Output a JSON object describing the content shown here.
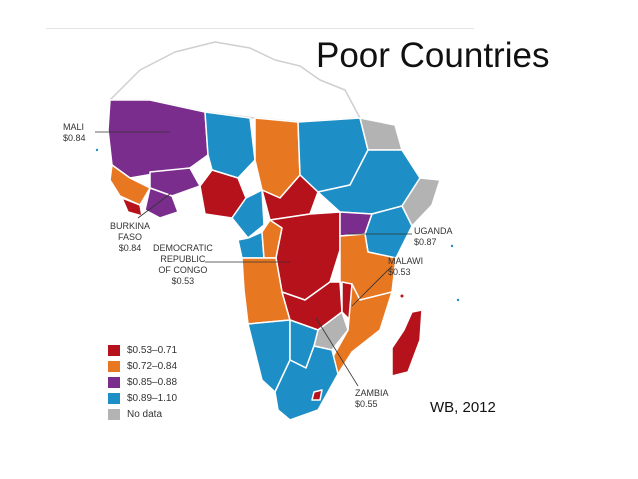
{
  "slide": {
    "title": "Poor Countries",
    "source": "WB, 2012"
  },
  "colors": {
    "band1": "#b5121b",
    "band2": "#e87722",
    "band3": "#7b2d8e",
    "band4": "#1e8fc6",
    "no_data": "#b3b3b3",
    "outside": "#ffffff"
  },
  "legend": [
    {
      "label": "$0.53–0.71",
      "color": "#b5121b"
    },
    {
      "label": "$0.72–0.84",
      "color": "#e87722"
    },
    {
      "label": "$0.85–0.88",
      "color": "#7b2d8e"
    },
    {
      "label": "$0.89–1.10",
      "color": "#1e8fc6"
    },
    {
      "label": "No data",
      "color": "#b3b3b3"
    }
  ],
  "callouts": {
    "mali": {
      "name": "MALI",
      "value": "$0.84"
    },
    "burkina": {
      "name_line1": "BURKINA",
      "name_line2": "FASO",
      "value": "$0.84"
    },
    "drc": {
      "name_line1": "DEMOCRATIC",
      "name_line2": "REPUBLIC",
      "name_line3": "OF CONGO",
      "value": "$0.53"
    },
    "uganda": {
      "name": "UGANDA",
      "value": "$0.87"
    },
    "malawi": {
      "name": "MALAWI",
      "value": "$0.53"
    },
    "zambia": {
      "name": "ZAMBIA",
      "value": "$0.55"
    }
  }
}
